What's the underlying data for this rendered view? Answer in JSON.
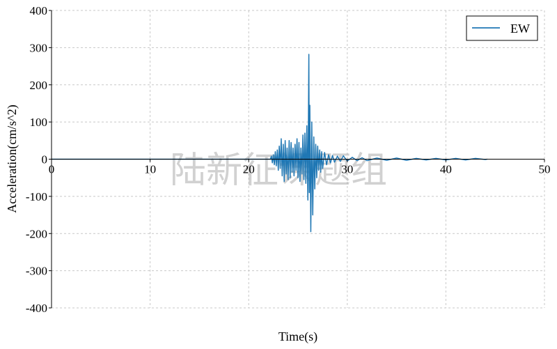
{
  "chart_data": {
    "type": "line",
    "title": "",
    "xlabel": "Time(s)",
    "ylabel": "Acceleration(cm/s^2)",
    "xlim": [
      0,
      50
    ],
    "ylim": [
      -400,
      400
    ],
    "xticks": [
      0,
      10,
      20,
      30,
      40,
      50
    ],
    "yticks": [
      400,
      300,
      200,
      100,
      0,
      -100,
      -200,
      -300,
      -400
    ],
    "grid": true,
    "legend_position": "top-right",
    "series": [
      {
        "name": "EW",
        "color": "#1f77b4",
        "points": [
          [
            0,
            0
          ],
          [
            22.2,
            0
          ],
          [
            22.3,
            8
          ],
          [
            22.4,
            -10
          ],
          [
            22.5,
            12
          ],
          [
            22.6,
            -15
          ],
          [
            22.7,
            20
          ],
          [
            22.8,
            -18
          ],
          [
            22.9,
            25
          ],
          [
            23.0,
            -30
          ],
          [
            23.1,
            35
          ],
          [
            23.2,
            -25
          ],
          [
            23.3,
            55
          ],
          [
            23.4,
            -45
          ],
          [
            23.5,
            40
          ],
          [
            23.6,
            -60
          ],
          [
            23.7,
            50
          ],
          [
            23.8,
            -40
          ],
          [
            23.9,
            30
          ],
          [
            24.0,
            -55
          ],
          [
            24.1,
            50
          ],
          [
            24.2,
            -50
          ],
          [
            24.3,
            45
          ],
          [
            24.4,
            -35
          ],
          [
            24.5,
            30
          ],
          [
            24.6,
            -45
          ],
          [
            24.7,
            40
          ],
          [
            24.8,
            -30
          ],
          [
            24.9,
            55
          ],
          [
            25.0,
            -50
          ],
          [
            25.1,
            45
          ],
          [
            25.2,
            -60
          ],
          [
            25.3,
            30
          ],
          [
            25.4,
            -40
          ],
          [
            25.5,
            65
          ],
          [
            25.6,
            -55
          ],
          [
            25.7,
            70
          ],
          [
            25.8,
            -65
          ],
          [
            25.9,
            90
          ],
          [
            26.0,
            -110
          ],
          [
            26.1,
            282
          ],
          [
            26.15,
            -90
          ],
          [
            26.2,
            145
          ],
          [
            26.3,
            -195
          ],
          [
            26.4,
            100
          ],
          [
            26.5,
            -150
          ],
          [
            26.6,
            60
          ],
          [
            26.7,
            -80
          ],
          [
            26.8,
            40
          ],
          [
            26.9,
            -50
          ],
          [
            27.0,
            35
          ],
          [
            27.1,
            -30
          ],
          [
            27.2,
            25
          ],
          [
            27.3,
            -35
          ],
          [
            27.4,
            20
          ],
          [
            27.5,
            -25
          ],
          [
            27.7,
            18
          ],
          [
            27.9,
            -15
          ],
          [
            28.1,
            12
          ],
          [
            28.3,
            -10
          ],
          [
            28.5,
            10
          ],
          [
            28.7,
            -8
          ],
          [
            29.0,
            8
          ],
          [
            29.3,
            -6
          ],
          [
            29.6,
            9
          ],
          [
            30,
            -5
          ],
          [
            30.5,
            5
          ],
          [
            31,
            -4
          ],
          [
            31.5,
            4
          ],
          [
            32,
            -4
          ],
          [
            33,
            3
          ],
          [
            34,
            -3
          ],
          [
            35,
            3
          ],
          [
            36,
            -3
          ],
          [
            37,
            2
          ],
          [
            38,
            -2
          ],
          [
            39,
            2
          ],
          [
            40,
            -2
          ],
          [
            41,
            2
          ],
          [
            42,
            -2
          ],
          [
            43,
            2
          ],
          [
            44,
            -1
          ],
          [
            44.2,
            0
          ]
        ]
      }
    ]
  },
  "watermark": "陆新征课题组"
}
